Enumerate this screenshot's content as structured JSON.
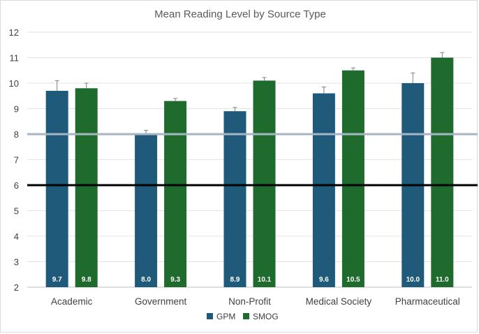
{
  "chart_data": {
    "type": "bar",
    "title": "Mean Reading Level by Source Type",
    "categories": [
      "Academic",
      "Government",
      "Non-Profit",
      "Medical Society",
      "Pharmaceutical"
    ],
    "series": [
      {
        "name": "GPM",
        "color": "#1f5a7a",
        "values": [
          9.7,
          8.0,
          8.9,
          9.6,
          10.0
        ],
        "error": [
          0.4,
          0.15,
          0.15,
          0.25,
          0.4
        ],
        "labels": [
          "9.7",
          "8.0",
          "8.9",
          "9.6",
          "10.0"
        ]
      },
      {
        "name": "SMOG",
        "color": "#1e6b2d",
        "values": [
          9.8,
          9.3,
          10.1,
          10.5,
          11.0
        ],
        "error": [
          0.2,
          0.1,
          0.12,
          0.1,
          0.2
        ],
        "labels": [
          "9.8",
          "9.3",
          "10.1",
          "10.5",
          "11.0"
        ]
      }
    ],
    "yticks": [
      "2",
      "3",
      "4",
      "5",
      "6",
      "7",
      "8",
      "9",
      "10",
      "11",
      "12"
    ],
    "ylim": [
      2,
      12
    ],
    "reference_lines": [
      {
        "value": 8,
        "color": "#a6b4c3"
      },
      {
        "value": 6,
        "color": "#000000"
      }
    ],
    "legend_position": "bottom",
    "grid": true
  }
}
